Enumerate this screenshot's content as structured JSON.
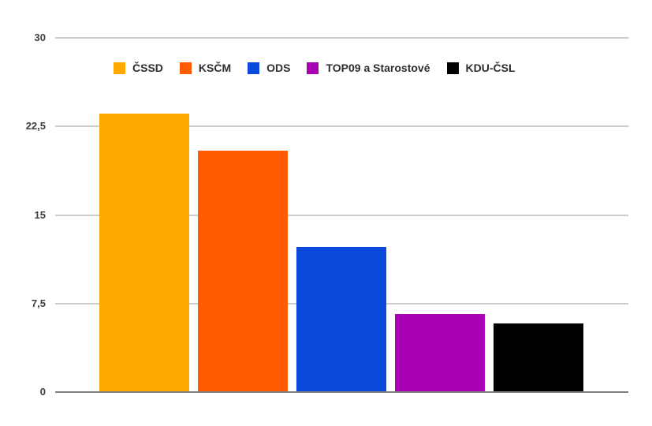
{
  "chart_data": {
    "type": "bar",
    "categories": [
      "ČSSD",
      "KSČM",
      "ODS",
      "TOP09 a Starostové",
      "KDU-ČSL"
    ],
    "values": [
      23.58,
      20.43,
      12.28,
      6.63,
      5.82
    ],
    "series_colors": [
      "#ffa800",
      "#ff5b00",
      "#0b49dc",
      "#a900b3",
      "#000000"
    ],
    "title": "",
    "xlabel": "",
    "ylabel": "",
    "ylim": [
      0,
      30
    ],
    "yticks": [
      {
        "label": "30",
        "value": 30
      },
      {
        "label": "22,5",
        "value": 22.5
      },
      {
        "label": "15",
        "value": 15
      },
      {
        "label": "7,5",
        "value": 7.5
      },
      {
        "label": "0",
        "value": 0
      }
    ],
    "grid": true,
    "legend_position": "top"
  },
  "legend": {
    "items": [
      {
        "label": "ČSSD",
        "color": "#ffa800"
      },
      {
        "label": "KSČM",
        "color": "#ff5b00"
      },
      {
        "label": "ODS",
        "color": "#0b49dc"
      },
      {
        "label": "TOP09 a Starostové",
        "color": "#a900b3"
      },
      {
        "label": "KDU-ČSL",
        "color": "#000000"
      }
    ]
  },
  "colors": {
    "background": "#ffffff",
    "gridline": "#cccccc",
    "axis": "#808080",
    "tick_text": "#3d3d3d",
    "legend_text": "#2e2e2e"
  }
}
